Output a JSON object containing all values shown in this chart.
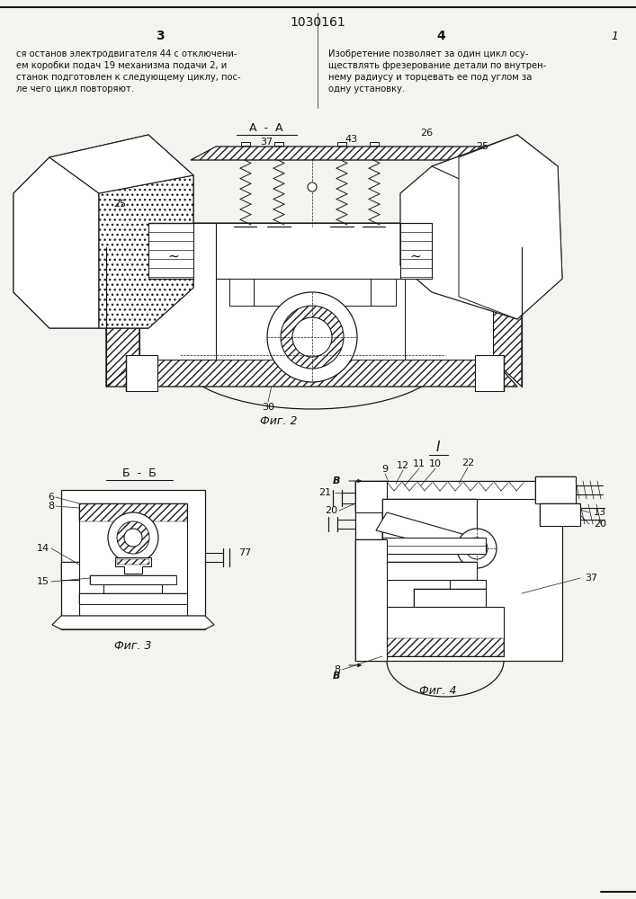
{
  "page_number": "1030161",
  "page_left": "3",
  "page_right": "4",
  "page_marker": "1",
  "text_left": "ся останов электродвигателя 44 с отключени-\nем коробки подач 19 механизма подачи 2, и\nстанок подготовлен к следующему циклу, пос-\nле чего цикл повторяют.",
  "text_right": "Изобретение позволяет за один цикл осу-\nществлять фрезерование детали по внутрен-\nнему радиусу и торцевать ее под углом за\nодну установку.",
  "fig2_label": "Фиг. 2",
  "fig3_label": "Фиг. 3",
  "fig4_label": "Фиг. 4",
  "bg_color": "#f5f3f0",
  "line_color": "#1a1a1a",
  "text_color": "#111111",
  "font_size_text": 7.2,
  "font_size_label": 9,
  "font_size_num": 8,
  "font_size_header": 10
}
